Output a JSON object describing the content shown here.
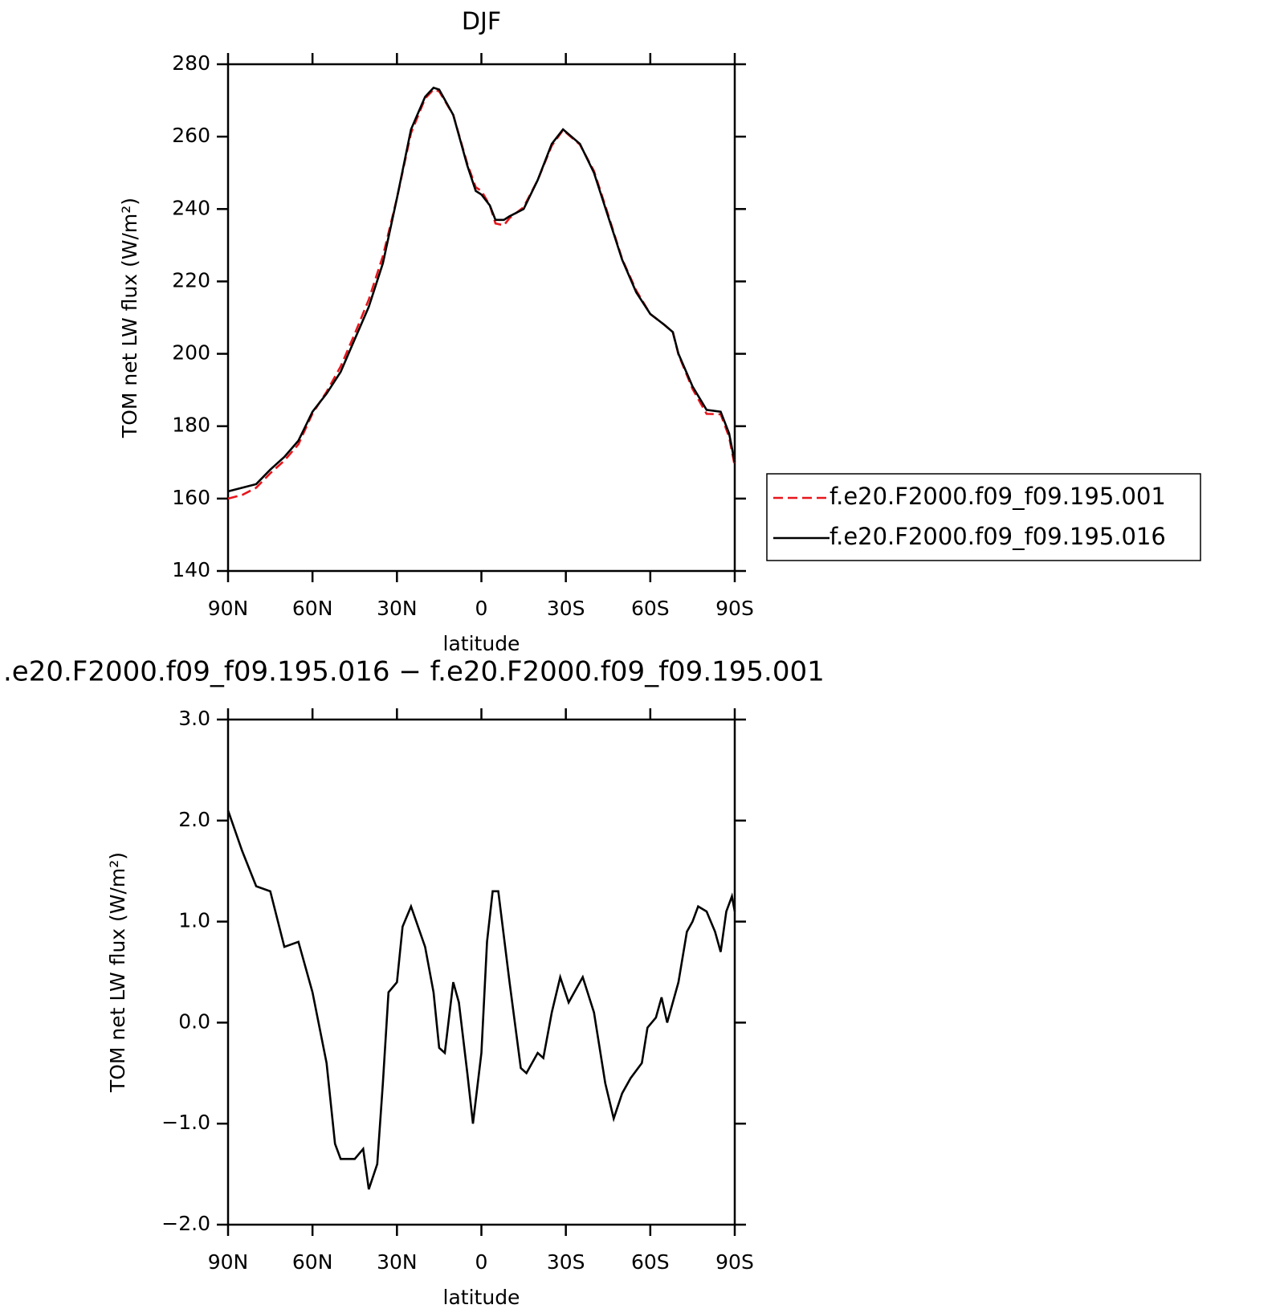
{
  "chart_data": [
    {
      "type": "line",
      "title": "DJF",
      "xlabel": "latitude",
      "ylabel": "TOM net LW flux (W/m²)",
      "x": [
        90,
        85,
        80,
        75,
        70,
        65,
        60,
        55,
        50,
        45,
        40,
        35,
        30,
        25,
        20,
        17,
        15,
        10,
        5,
        2,
        0,
        -3,
        -5,
        -8,
        -10,
        -15,
        -20,
        -25,
        -29,
        -35,
        -40,
        -45,
        -50,
        -55,
        -60,
        -65,
        -68,
        -70,
        -75,
        -80,
        -85,
        -88,
        -90
      ],
      "series": [
        {
          "name": "f.e20.F2000.f09_f09.195.001",
          "color": "#e8151b",
          "dash": true,
          "values": [
            160,
            161,
            163,
            167,
            170.5,
            175,
            183.5,
            189.5,
            196.5,
            205.5,
            215,
            227,
            243,
            261,
            270.5,
            273,
            272.5,
            266,
            252.5,
            246,
            245,
            241,
            236,
            235.5,
            237.5,
            240.5,
            248,
            257.5,
            261.8,
            257.8,
            250.5,
            238.5,
            226.2,
            217.5,
            211,
            208,
            206,
            199.8,
            190.3,
            183.4,
            183.3,
            177,
            169
          ]
        },
        {
          "name": "f.e20.F2000.f09_f09.195.016",
          "color": "#000000",
          "dash": false,
          "values": [
            162,
            163,
            164,
            168,
            171.5,
            176,
            184,
            189,
            195,
            204,
            213,
            225,
            243,
            262,
            271,
            273.5,
            273,
            266,
            252,
            245,
            244,
            241,
            237,
            237,
            238,
            240,
            248,
            258,
            262,
            258,
            250,
            238,
            226,
            217,
            211,
            208,
            206,
            200,
            191,
            184.5,
            184,
            178,
            170
          ]
        }
      ],
      "xlim": [
        90,
        -90
      ],
      "xticks": [
        {
          "value": 90,
          "label": "90N"
        },
        {
          "value": 60,
          "label": "60N"
        },
        {
          "value": 30,
          "label": "30N"
        },
        0,
        {
          "value": -30,
          "label": "30S"
        },
        {
          "value": -60,
          "label": "60S"
        },
        {
          "value": -90,
          "label": "90S"
        }
      ],
      "ylim": [
        140,
        280
      ],
      "yticks": [
        140,
        160,
        180,
        200,
        220,
        240,
        260,
        280
      ],
      "legend": "right"
    },
    {
      "type": "line",
      "title": ".e20.F2000.f09_f09.195.016 − f.e20.F2000.f09_f09.195.001",
      "xlabel": "latitude",
      "ylabel": "TOM net LW flux (W/m²)",
      "x": [
        90,
        85,
        80,
        75,
        70,
        65,
        60,
        55,
        52,
        50,
        45,
        42,
        40,
        37,
        35,
        33,
        30,
        28,
        25,
        20,
        17,
        15,
        13,
        10,
        8,
        5,
        3,
        0,
        -2,
        -4,
        -6,
        -10,
        -14,
        -16,
        -20,
        -22,
        -25,
        -28,
        -31,
        -33,
        -36,
        -40,
        -44,
        -47,
        -50,
        -53,
        -57,
        -59,
        -62,
        -64,
        -66,
        -70,
        -73,
        -75,
        -77,
        -80,
        -83,
        -85,
        -87,
        -89,
        -90
      ],
      "series": [
        {
          "color": "#000000",
          "dash": false,
          "values": [
            2.1,
            1.7,
            1.35,
            1.3,
            0.75,
            0.8,
            0.3,
            -0.4,
            -1.2,
            -1.35,
            -1.35,
            -1.25,
            -1.65,
            -1.4,
            -0.6,
            0.3,
            0.4,
            0.95,
            1.15,
            0.75,
            0.3,
            -0.25,
            -0.3,
            0.4,
            0.2,
            -0.5,
            -1.0,
            -0.3,
            0.8,
            1.3,
            1.3,
            0.4,
            -0.45,
            -0.5,
            -0.3,
            -0.35,
            0.1,
            0.45,
            0.2,
            0.3,
            0.45,
            0.1,
            -0.6,
            -0.95,
            -0.7,
            -0.55,
            -0.4,
            -0.05,
            0.05,
            0.25,
            0,
            0.4,
            0.9,
            1.0,
            1.15,
            1.1,
            0.9,
            0.7,
            1.1,
            1.25,
            1.1
          ]
        }
      ],
      "xlim": [
        90,
        -90
      ],
      "xticks": [
        {
          "value": 90,
          "label": "90N"
        },
        {
          "value": 60,
          "label": "60N"
        },
        {
          "value": 30,
          "label": "30N"
        },
        0,
        {
          "value": -30,
          "label": "30S"
        },
        {
          "value": -60,
          "label": "60S"
        },
        {
          "value": -90,
          "label": "90S"
        }
      ],
      "ylim": [
        -2,
        3
      ],
      "yticks": [
        {
          "value": -2,
          "label": "−2.0"
        },
        {
          "value": -1,
          "label": "−1.0"
        },
        {
          "value": 0,
          "label": "0.0"
        },
        {
          "value": 1,
          "label": "1.0"
        },
        {
          "value": 2,
          "label": "2.0"
        },
        {
          "value": 3,
          "label": "3.0"
        }
      ]
    }
  ]
}
